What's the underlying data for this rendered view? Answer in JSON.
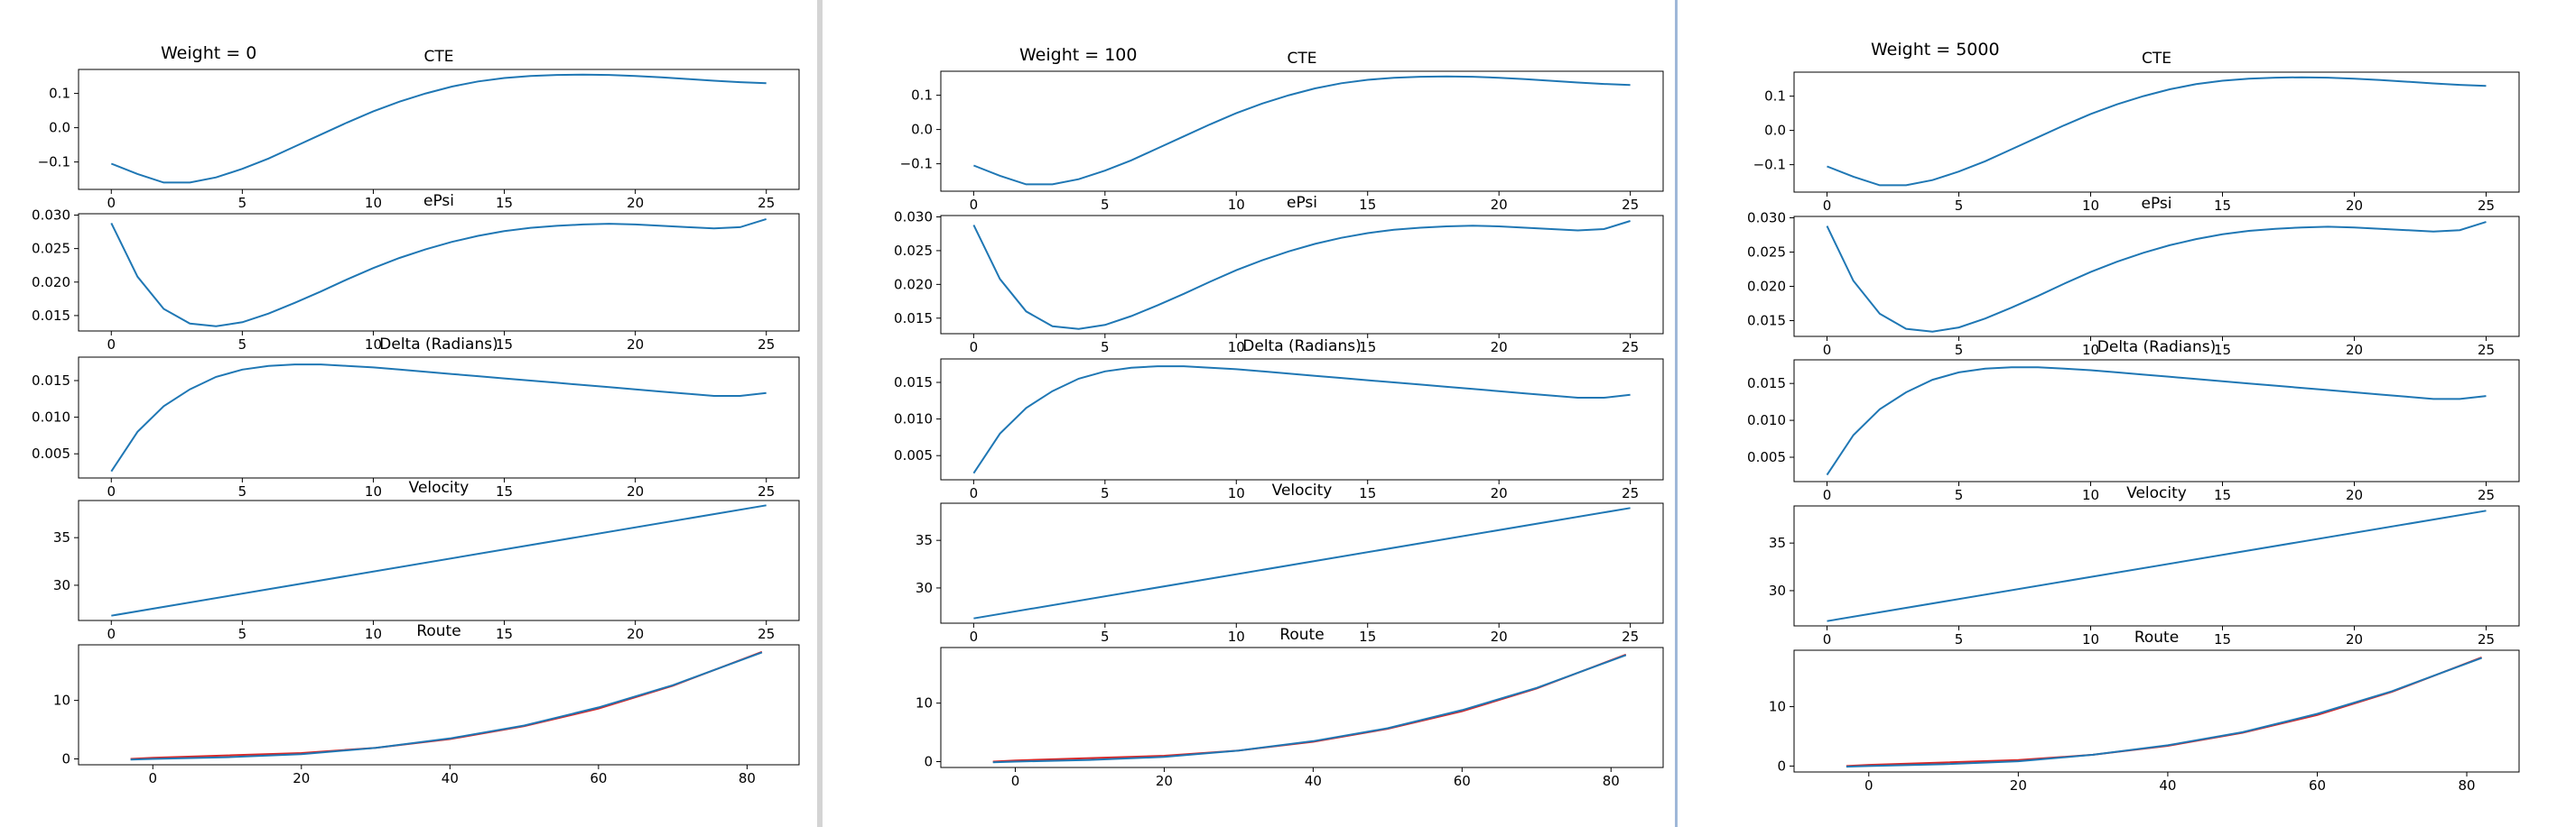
{
  "panels": [
    {
      "title": "Weight = 0"
    },
    {
      "title": "Weight = 100"
    },
    {
      "title": "Weight = 5000"
    }
  ],
  "colors": {
    "series_blue": "#1f77b4",
    "reference_red": "#d62728",
    "divider_gray": "#c8c8c8",
    "divider_blue": "#9fb8d8"
  },
  "chart_data": [
    {
      "type": "line",
      "title": "CTE",
      "x": [
        0,
        1,
        2,
        3,
        4,
        5,
        6,
        7,
        8,
        9,
        10,
        11,
        12,
        13,
        14,
        15,
        16,
        17,
        18,
        19,
        20,
        21,
        22,
        23,
        24,
        25
      ],
      "y": [
        -0.105,
        -0.135,
        -0.16,
        -0.16,
        -0.145,
        -0.12,
        -0.09,
        -0.055,
        -0.02,
        0.015,
        0.048,
        0.076,
        0.1,
        0.12,
        0.135,
        0.145,
        0.151,
        0.154,
        0.155,
        0.154,
        0.151,
        0.147,
        0.142,
        0.137,
        0.133,
        0.13
      ],
      "xlim": [
        -1.25,
        26.25
      ],
      "ylim": [
        -0.18,
        0.17
      ],
      "xticks": [
        0,
        5,
        10,
        15,
        20,
        25
      ],
      "xticklabels": [
        "0",
        "5",
        "10",
        "15",
        "20",
        "25"
      ],
      "yticks": [
        -0.1,
        0.0,
        0.1
      ],
      "yticklabels": [
        "−0.1",
        "0.0",
        "0.1"
      ]
    },
    {
      "type": "line",
      "title": "ePsi",
      "x": [
        0,
        1,
        2,
        3,
        4,
        5,
        6,
        7,
        8,
        9,
        10,
        11,
        12,
        13,
        14,
        15,
        16,
        17,
        18,
        19,
        20,
        21,
        22,
        23,
        24,
        25
      ],
      "y": [
        0.0288,
        0.0208,
        0.016,
        0.0138,
        0.0134,
        0.014,
        0.0153,
        0.0169,
        0.0186,
        0.0204,
        0.0221,
        0.0236,
        0.0249,
        0.026,
        0.0269,
        0.0276,
        0.0281,
        0.0284,
        0.0286,
        0.0287,
        0.0286,
        0.0284,
        0.0282,
        0.028,
        0.0282,
        0.0294
      ],
      "xlim": [
        -1.25,
        26.25
      ],
      "ylim": [
        0.0127,
        0.0302
      ],
      "xticks": [
        0,
        5,
        10,
        15,
        20,
        25
      ],
      "xticklabels": [
        "0",
        "5",
        "10",
        "15",
        "20",
        "25"
      ],
      "yticks": [
        0.015,
        0.02,
        0.025,
        0.03
      ],
      "yticklabels": [
        "0.015",
        "0.020",
        "0.025",
        "0.030"
      ]
    },
    {
      "type": "line",
      "title": "Delta (Radians)",
      "x": [
        0,
        1,
        2,
        3,
        4,
        5,
        6,
        7,
        8,
        9,
        10,
        11,
        12,
        13,
        14,
        15,
        16,
        17,
        18,
        19,
        20,
        21,
        22,
        23,
        24,
        25
      ],
      "y": [
        0.0026,
        0.008,
        0.0115,
        0.0138,
        0.0155,
        0.0165,
        0.017,
        0.0172,
        0.0172,
        0.017,
        0.0168,
        0.0165,
        0.0162,
        0.0159,
        0.0156,
        0.0153,
        0.015,
        0.0147,
        0.0144,
        0.0141,
        0.0138,
        0.0135,
        0.0132,
        0.0129,
        0.0129,
        0.0133
      ],
      "xlim": [
        -1.25,
        26.25
      ],
      "ylim": [
        0.0017,
        0.0182
      ],
      "xticks": [
        0,
        5,
        10,
        15,
        20,
        25
      ],
      "xticklabels": [
        "0",
        "5",
        "10",
        "15",
        "20",
        "25"
      ],
      "yticks": [
        0.005,
        0.01,
        0.015
      ],
      "yticklabels": [
        "0.005",
        "0.010",
        "0.015"
      ]
    },
    {
      "type": "line",
      "title": "Velocity",
      "x": [
        0,
        25
      ],
      "y": [
        26.8,
        38.4
      ],
      "xlim": [
        -1.25,
        26.25
      ],
      "ylim": [
        26.3,
        38.9
      ],
      "xticks": [
        0,
        5,
        10,
        15,
        20,
        25
      ],
      "xticklabels": [
        "0",
        "5",
        "10",
        "15",
        "20",
        "25"
      ],
      "yticks": [
        30,
        35
      ],
      "yticklabels": [
        "30",
        "35"
      ]
    },
    {
      "type": "line",
      "title": "Route",
      "series": [
        {
          "color": "red",
          "x": [
            -3,
            0,
            10,
            20,
            30,
            40,
            50,
            60,
            70,
            82
          ],
          "y": [
            0,
            0.2,
            0.6,
            1.0,
            1.9,
            3.4,
            5.6,
            8.6,
            12.5,
            18.3
          ]
        },
        {
          "color": "blue",
          "x": [
            -3,
            0,
            10,
            20,
            30,
            40,
            50,
            60,
            70,
            82
          ],
          "y": [
            -0.1,
            0,
            0.3,
            0.8,
            1.9,
            3.5,
            5.7,
            8.8,
            12.6,
            18.2
          ]
        }
      ],
      "xlim": [
        -10,
        87
      ],
      "ylim": [
        -1,
        19.5
      ],
      "xticks": [
        0,
        20,
        40,
        60,
        80
      ],
      "xticklabels": [
        "0",
        "20",
        "40",
        "60",
        "80"
      ],
      "yticks": [
        0,
        10
      ],
      "yticklabels": [
        "0",
        "10"
      ]
    }
  ]
}
